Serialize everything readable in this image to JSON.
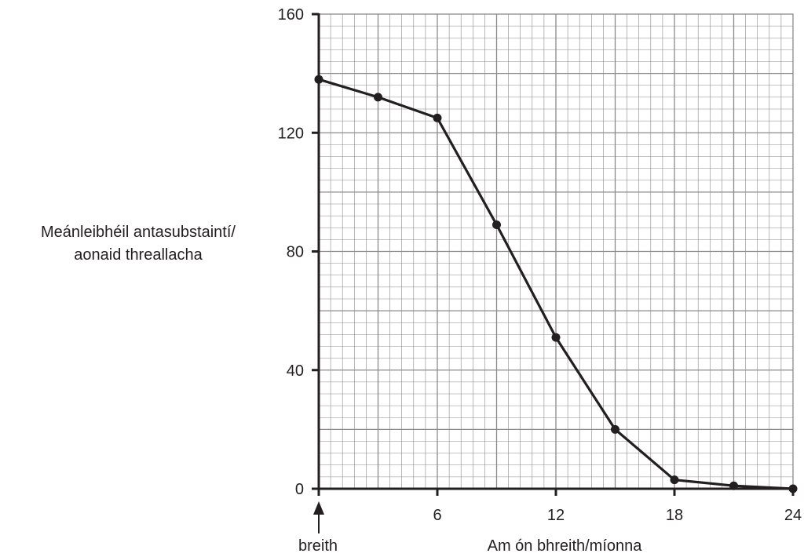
{
  "chart_data": {
    "type": "line",
    "title": "",
    "ylabel_lines": [
      "Meánleibhéil antasubstaintí/",
      "aonaid threallacha"
    ],
    "xlabel": "Am ón bhreith/míonna",
    "birth_label": "breith",
    "xlim": [
      0,
      24
    ],
    "ylim": [
      0,
      160
    ],
    "x_ticks": [
      6,
      12,
      18,
      24
    ],
    "y_ticks": [
      0,
      40,
      80,
      120,
      160
    ],
    "grid": true,
    "series": [
      {
        "x": [
          0,
          3,
          6,
          9,
          12,
          15,
          18,
          21,
          24
        ],
        "y": [
          138,
          132,
          125,
          89,
          51,
          20,
          3,
          1,
          0
        ]
      }
    ]
  },
  "colors": {
    "ink": "#231f20",
    "grid": "#8a8a8a"
  }
}
